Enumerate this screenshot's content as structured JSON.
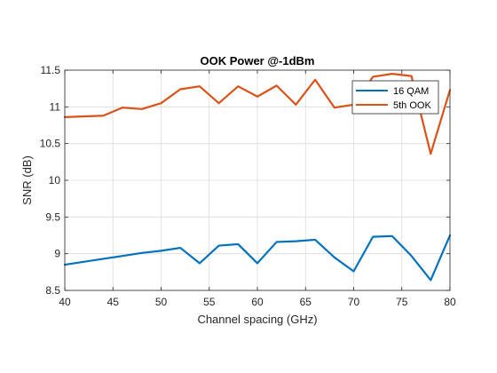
{
  "chart_data": {
    "type": "line",
    "title": "OOK Power @-1dBm",
    "xlabel": "Channel spacing (GHz)",
    "ylabel": "SNR (dB)",
    "xlim": [
      40,
      80
    ],
    "ylim": [
      8.5,
      11.5
    ],
    "xticks": [
      40,
      45,
      50,
      55,
      60,
      65,
      70,
      75,
      80
    ],
    "yticks": [
      8.5,
      9,
      9.5,
      10,
      10.5,
      11,
      11.5
    ],
    "xtick_labels": [
      "40",
      "45",
      "50",
      "55",
      "60",
      "65",
      "70",
      "75",
      "80"
    ],
    "ytick_labels": [
      "8.5",
      "9",
      "9.5",
      "10",
      "10.5",
      "11",
      "11.5"
    ],
    "grid": true,
    "legend_position": "top-right",
    "series": [
      {
        "name": "16 QAM",
        "color": "#0072BD",
        "x": [
          40,
          44,
          46,
          48,
          50,
          52,
          54,
          56,
          58,
          60,
          62,
          64,
          66,
          68,
          70,
          72,
          74,
          76,
          78,
          80
        ],
        "y": [
          8.85,
          8.93,
          8.97,
          9.01,
          9.04,
          9.08,
          8.87,
          9.11,
          9.13,
          8.87,
          9.16,
          9.17,
          9.19,
          8.95,
          8.76,
          9.23,
          9.24,
          8.97,
          8.64,
          9.25
        ]
      },
      {
        "name": "5th OOK",
        "color": "#D95319",
        "x": [
          40,
          44,
          46,
          48,
          50,
          52,
          54,
          56,
          58,
          60,
          62,
          64,
          66,
          68,
          70,
          72,
          74,
          76,
          78,
          80
        ],
        "y": [
          10.86,
          10.88,
          10.99,
          10.97,
          11.05,
          11.24,
          11.28,
          11.05,
          11.28,
          11.14,
          11.29,
          11.03,
          11.37,
          10.99,
          11.03,
          11.41,
          11.45,
          11.42,
          10.36,
          11.23
        ]
      }
    ]
  }
}
